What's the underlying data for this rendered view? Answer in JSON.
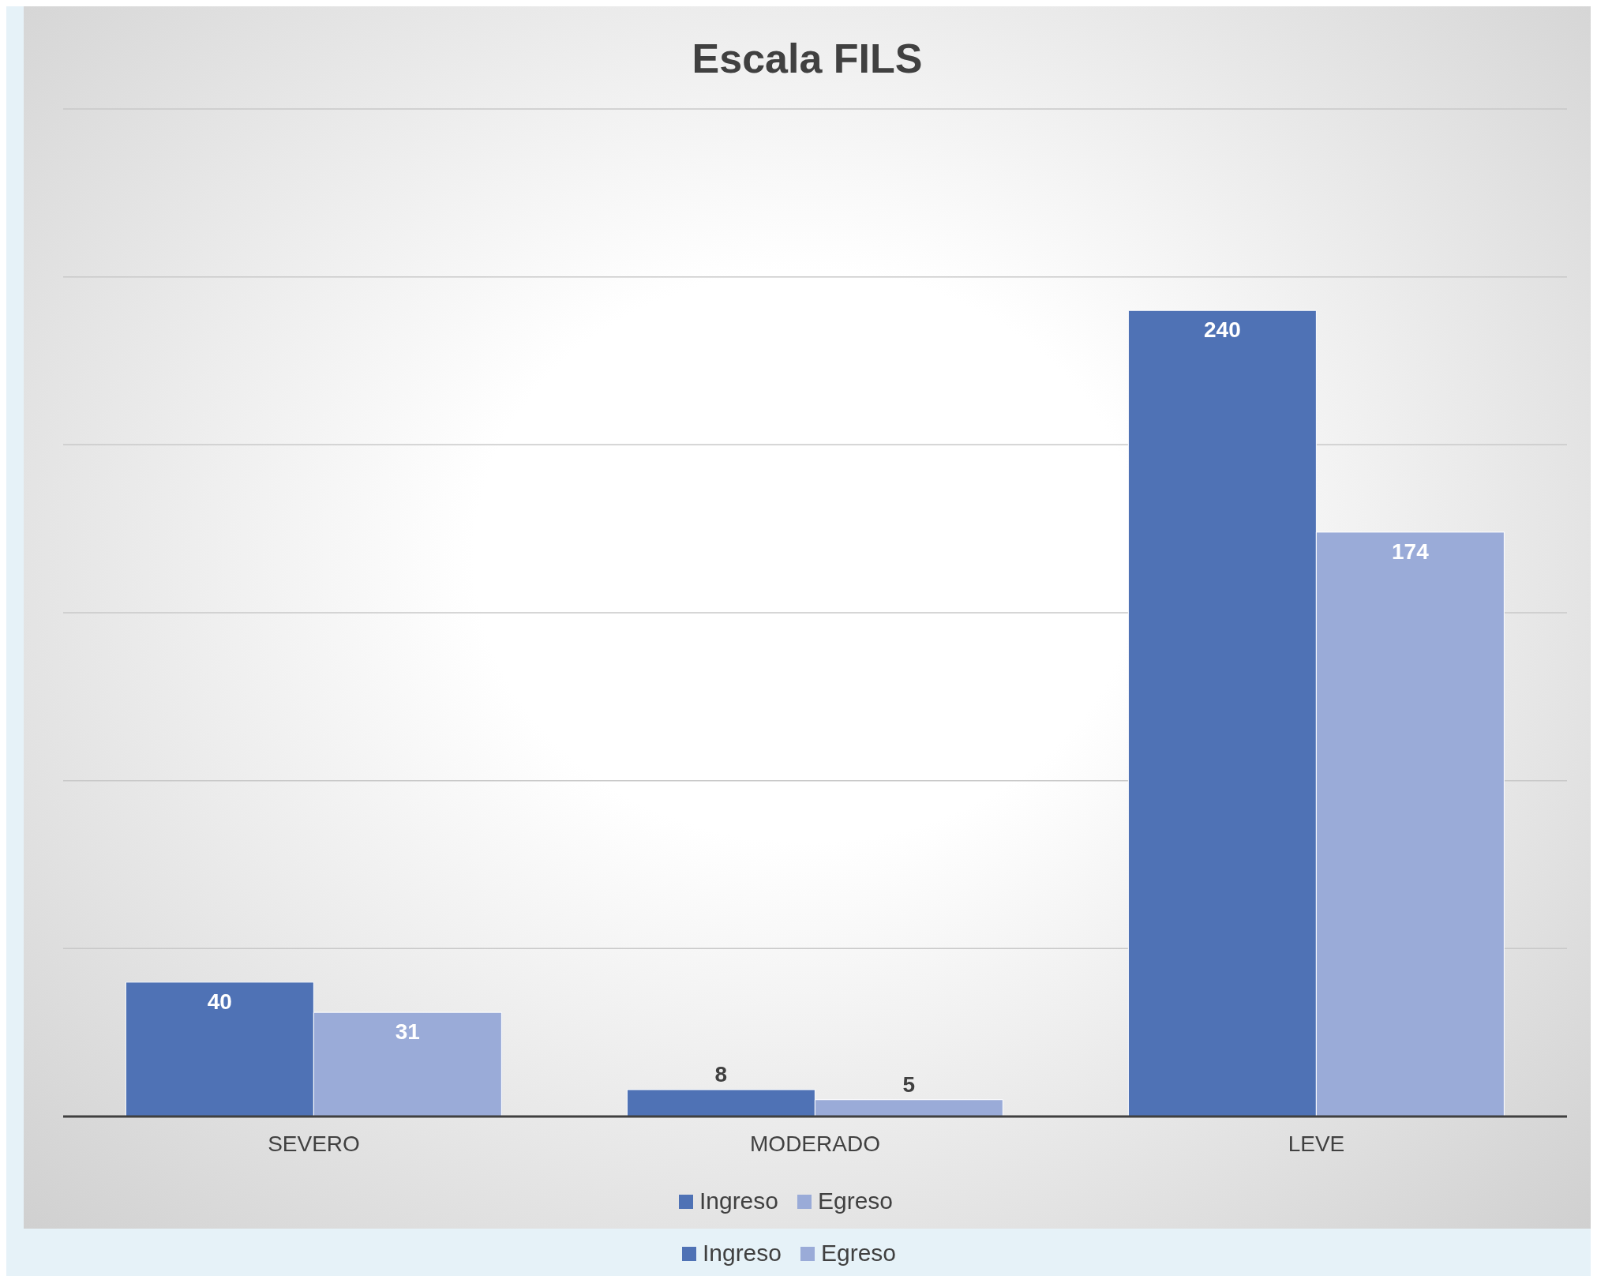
{
  "chart_data": {
    "type": "bar",
    "title": "Escala FILS",
    "categories": [
      "SEVERO",
      "MODERADO",
      "LEVE"
    ],
    "series": [
      {
        "name": "Ingreso",
        "color": "#4f72b5",
        "values": [
          40,
          8,
          240
        ]
      },
      {
        "name": "Egreso",
        "color": "#9aabd8",
        "values": [
          31,
          5,
          174
        ]
      }
    ],
    "ylim": [
      0,
      300
    ],
    "yticks": [
      {
        "value": 0,
        "label": null
      },
      {
        "value": 50,
        "label": null
      },
      {
        "value": 100,
        "label": null
      },
      {
        "value": 150,
        "label": null
      },
      {
        "value": 200,
        "label": null
      },
      {
        "value": 250,
        "label": null
      },
      {
        "value": 300,
        "label": null
      }
    ],
    "tick_labels": "x",
    "grid": "y",
    "data_labels": true,
    "legend": "bottom"
  }
}
